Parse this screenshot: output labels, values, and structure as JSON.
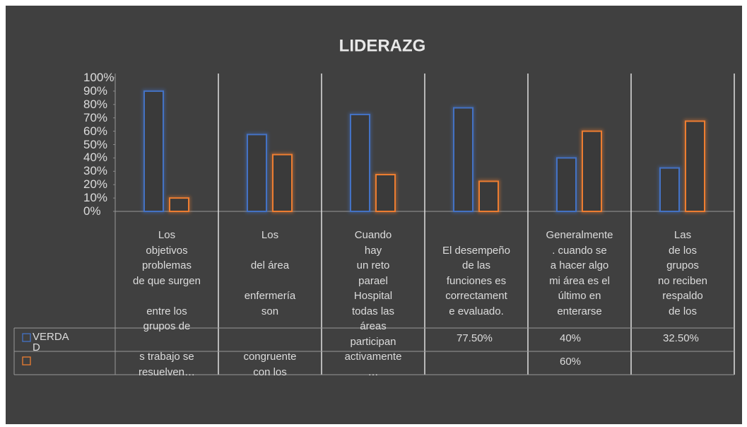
{
  "chart_data": {
    "type": "bar",
    "title": "LIDERAZG",
    "categories": [
      "Los\nobjetivos\nproblemas\nde que surgen\n\nentre los\ngrupos de\n\ns trabajo se\nresuelven…",
      "Los\n\ndel área\n\nenfermería\nson\n\n\ncongruente\ncon los",
      "Cuando\nhay\nun reto\nparael\nHospital\ntodas las\náreas\nparticipan\nactivamente\n…",
      "\nEl desempeño\nde las\nfunciones  es\ncorrectament\ne evaluado.",
      "Generalmente\n. cuando se\na  hacer algo\nmi área es el\núltimo en\nenterarse",
      "Las\nde          los\ngrupos\nno reciben\nrespaldo\nde          los"
    ],
    "series": [
      {
        "name": "VERDAD",
        "color": "#4472c4",
        "values": [
          90,
          57.5,
          72.5,
          77.5,
          40,
          32.5
        ],
        "value_labels": [
          null,
          null,
          null,
          "77.50%",
          "40%",
          "32.50%"
        ]
      },
      {
        "name": null,
        "color": "#ed7d31",
        "values": [
          10,
          42.5,
          27.5,
          22.5,
          60,
          67.5
        ],
        "value_labels": [
          null,
          null,
          null,
          null,
          "60%",
          null
        ]
      }
    ],
    "ylim": [
      0,
      100
    ],
    "yticks": [
      {
        "value": 0,
        "label": "0%"
      },
      {
        "value": 10,
        "label": "10%"
      },
      {
        "value": 20,
        "label": "20%"
      },
      {
        "value": 30,
        "label": "30%"
      },
      {
        "value": 40,
        "label": "40%"
      },
      {
        "value": 50,
        "label": "50%"
      },
      {
        "value": 60,
        "label": "60%"
      },
      {
        "value": 70,
        "label": "70%"
      },
      {
        "value": 80,
        "label": "80%"
      },
      {
        "value": 90,
        "label": "90%"
      },
      {
        "value": 100,
        "label": "100%"
      }
    ]
  }
}
